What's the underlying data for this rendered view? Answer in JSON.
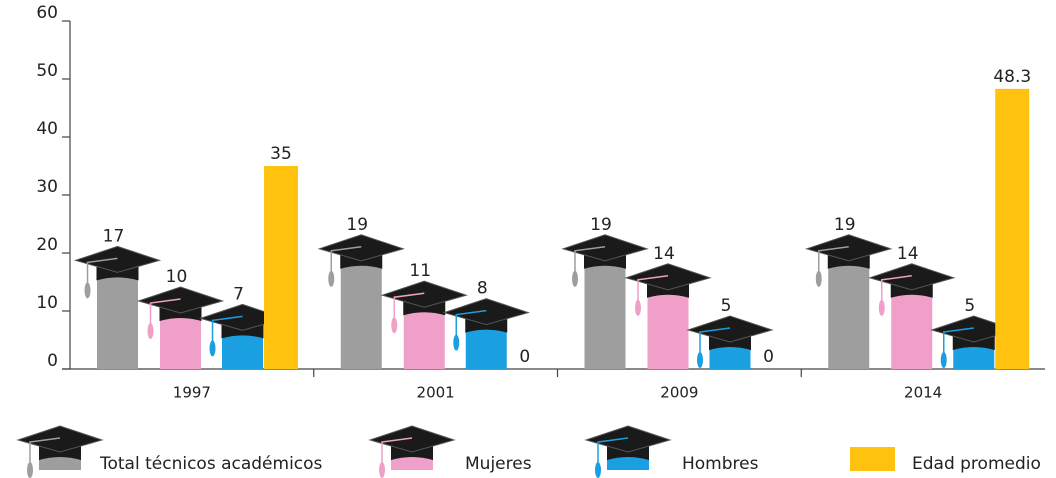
{
  "chart_data": {
    "type": "bar",
    "categories": [
      "1997",
      "2001",
      "2009",
      "2014"
    ],
    "series": [
      {
        "name": "Total técnicos académicos",
        "color": "#9e9e9e",
        "values": [
          17,
          19,
          19,
          19
        ]
      },
      {
        "name": "Mujeres",
        "color": "#f0a0c8",
        "values": [
          10,
          11,
          14,
          14
        ]
      },
      {
        "name": "Hombres",
        "color": "#1aa0e0",
        "values": [
          7,
          8,
          5,
          5
        ]
      },
      {
        "name": "Edad promedio",
        "color": "#ffc20e",
        "values": [
          35,
          0,
          0,
          48.3
        ]
      }
    ],
    "ylim": [
      0,
      60
    ],
    "yticks": [
      0,
      10,
      20,
      30,
      40,
      50,
      60
    ],
    "grid": false
  }
}
